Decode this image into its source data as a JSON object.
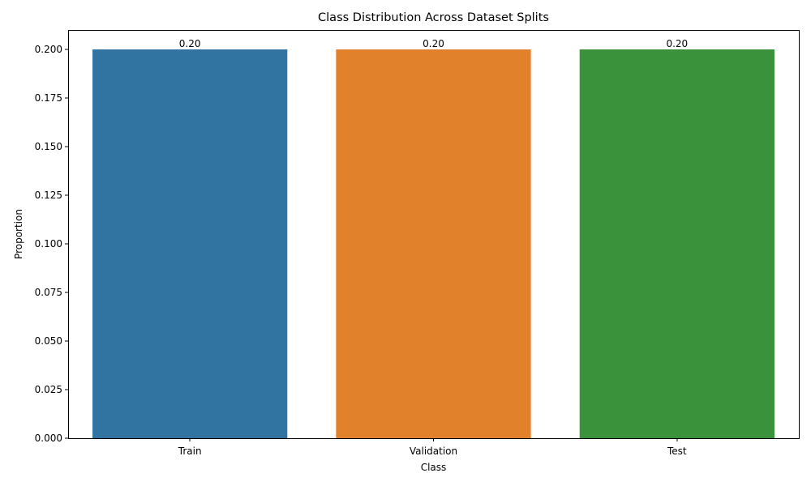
{
  "chart_data": {
    "type": "bar",
    "title": "Class Distribution Across Dataset Splits",
    "xlabel": "Class",
    "ylabel": "Proportion",
    "categories": [
      "Train",
      "Validation",
      "Test"
    ],
    "values": [
      0.2,
      0.2,
      0.2
    ],
    "data_labels": [
      "0.20",
      "0.20",
      "0.20"
    ],
    "colors": [
      "#3274a1",
      "#e1812c",
      "#3a923a"
    ],
    "ylim": [
      0,
      0.21
    ],
    "yticks": [
      0.0,
      0.025,
      0.05,
      0.075,
      0.1,
      0.125,
      0.15,
      0.175,
      0.2
    ],
    "ytick_labels": [
      "0.000",
      "0.025",
      "0.050",
      "0.075",
      "0.100",
      "0.125",
      "0.150",
      "0.175",
      "0.200"
    ],
    "grid": false,
    "legend": "none"
  }
}
